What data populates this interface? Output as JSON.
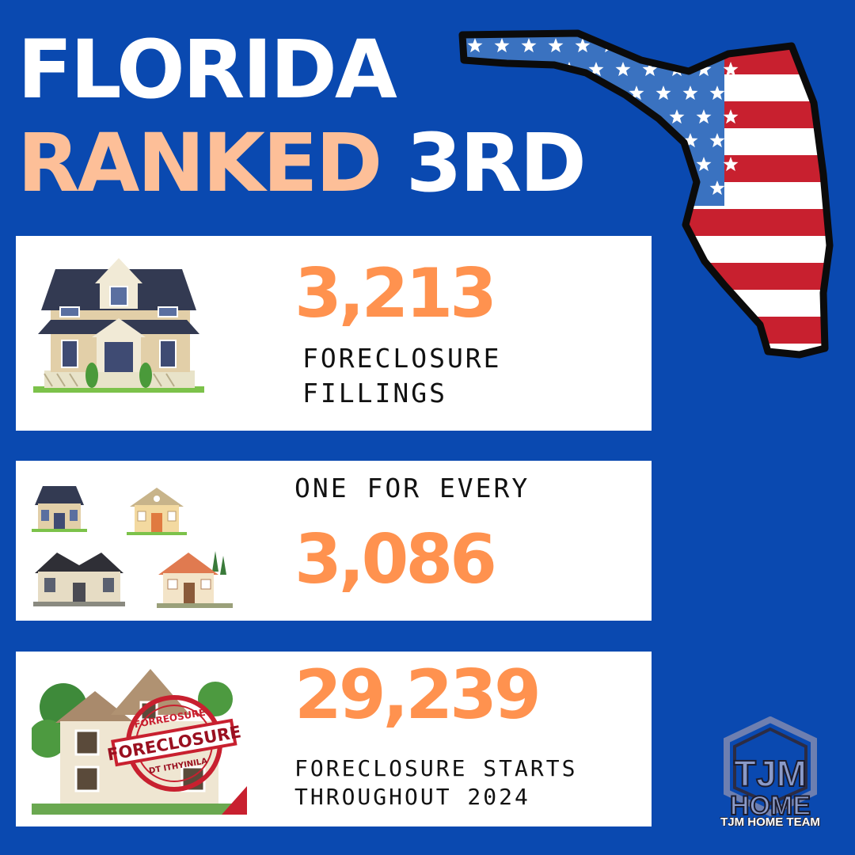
{
  "title": {
    "line1": "FLORIDA",
    "line2_highlight": "RANKED",
    "line2_rest": "3RD"
  },
  "stats": [
    {
      "number": "3,213",
      "caption_line1": "FORECLOSURE",
      "caption_line2": "FILLINGS"
    },
    {
      "caption": "ONE FOR EVERY",
      "number": "3,086"
    },
    {
      "number": "29,239",
      "caption_line1": "FORECLOSURE STARTS",
      "caption_line2": "THROUGHOUT 2024"
    }
  ],
  "stamp": {
    "top": "FORREOSURE",
    "main": "FORECLOSURE",
    "bottom": "DT ITHYINILA"
  },
  "logo": {
    "monogram": "TJM",
    "word": "HOME",
    "brand": "TJM HOME TEAM"
  },
  "colors": {
    "background": "#0a49b0",
    "peach": "#fdbf98",
    "orange": "#ff924f",
    "flag_red": "#c8202f",
    "flag_blue": "#3a72c0"
  }
}
